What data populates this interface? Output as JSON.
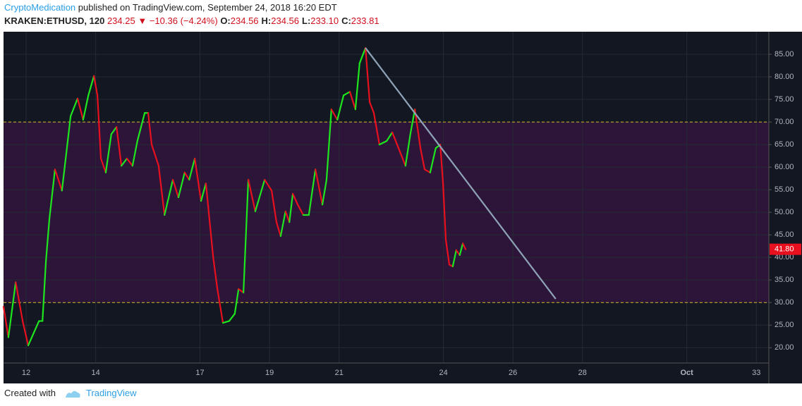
{
  "header": {
    "author": "CryptoMedication",
    "published": "published on TradingView.com, September 24, 2018 16:20 EDT",
    "symbol": "KRAKEN:ETHUSD, 120",
    "last": "234.25",
    "arrow": "▼",
    "change": "−10.36 (−4.24%)",
    "ohlc": [
      {
        "label": "O:",
        "value": "234.56"
      },
      {
        "label": "H:",
        "value": "234.56"
      },
      {
        "label": "L:",
        "value": "233.10"
      },
      {
        "label": "C:",
        "value": "233.81"
      }
    ]
  },
  "footer": {
    "text": "Created with",
    "brand": "TradingView"
  },
  "chart_data": {
    "type": "line",
    "up_color": "#1ee61e",
    "down_color": "#e8101e",
    "x": [
      11.35,
      11.49,
      11.7,
      11.9,
      12.06,
      12.37,
      12.47,
      12.57,
      12.67,
      12.83,
      13.03,
      13.28,
      13.48,
      13.64,
      13.79,
      13.95,
      14.05,
      14.15,
      14.29,
      14.45,
      14.6,
      14.74,
      14.9,
      15.06,
      15.2,
      15.41,
      15.51,
      15.61,
      15.81,
      15.98,
      16.22,
      16.38,
      16.56,
      16.69,
      16.85,
      17.03,
      17.17,
      17.38,
      17.5,
      17.66,
      17.84,
      18.0,
      18.11,
      18.25,
      18.39,
      18.59,
      18.86,
      19.06,
      19.2,
      19.32,
      19.46,
      19.57,
      19.67,
      19.81,
      19.97,
      20.13,
      20.32,
      20.52,
      20.64,
      20.78,
      20.95,
      21.13,
      21.31,
      21.47,
      21.59,
      21.76,
      21.88,
      22.0,
      22.16,
      22.37,
      22.53,
      22.71,
      22.91,
      23.05,
      23.18,
      23.34,
      23.46,
      23.62,
      23.78,
      23.91,
      23.99,
      24.07,
      24.17,
      24.27,
      24.37,
      24.47,
      24.56,
      24.64
    ],
    "values": [
      29.1,
      22.3,
      34.5,
      25.9,
      20.5,
      25.9,
      25.9,
      39.2,
      48.6,
      59.5,
      54.8,
      71.3,
      75.2,
      70.5,
      75.9,
      80.2,
      75.9,
      61.9,
      58.8,
      67.3,
      68.9,
      60.3,
      61.9,
      60.3,
      65.8,
      72.0,
      72.0,
      65.0,
      60.3,
      49.4,
      57.2,
      53.3,
      58.8,
      57.2,
      61.9,
      52.5,
      56.4,
      40.0,
      33.0,
      25.5,
      25.9,
      27.5,
      33.0,
      32.2,
      57.2,
      50.2,
      57.2,
      54.8,
      47.8,
      44.7,
      50.2,
      47.8,
      54.1,
      51.7,
      49.4,
      49.4,
      59.5,
      51.7,
      57.2,
      72.8,
      70.5,
      75.9,
      76.7,
      72.8,
      83.0,
      86.4,
      74.4,
      72.0,
      65.0,
      65.8,
      67.7,
      64.2,
      60.3,
      67.3,
      72.8,
      64.2,
      59.5,
      58.8,
      64.2,
      65.0,
      56.4,
      43.9,
      38.4,
      38.0,
      41.6,
      40.5,
      43.1,
      41.8
    ],
    "last_label": "41.80",
    "bands": [
      30,
      70
    ],
    "band_color": "#2c1538",
    "band_line_color": "#d8b82a",
    "trendline": {
      "x": [
        21.76,
        27.23
      ],
      "values": [
        86.4,
        30.8
      ],
      "color": "#8fa3b8"
    },
    "xlim": [
      11.35,
      33.36
    ],
    "ylim": [
      16.6,
      90
    ],
    "xticks": [
      12,
      14,
      17,
      19,
      21,
      24,
      26,
      28,
      {
        "value": 31,
        "label": "Oct"
      },
      33
    ],
    "yticks": [
      {
        "value": 20,
        "label": "20.00"
      },
      {
        "value": 25,
        "label": "25.00"
      },
      {
        "value": 30,
        "label": "30.00"
      },
      {
        "value": 35,
        "label": "35.00"
      },
      {
        "value": 40,
        "label": "40.00"
      },
      {
        "value": 45,
        "label": "45.00"
      },
      {
        "value": 50,
        "label": "50.00"
      },
      {
        "value": 55,
        "label": "55.00"
      },
      {
        "value": 60,
        "label": "60.00"
      },
      {
        "value": 65,
        "label": "65.00"
      },
      {
        "value": 70,
        "label": "70.00"
      },
      {
        "value": 75,
        "label": "75.00"
      },
      {
        "value": 80,
        "label": "80.00"
      },
      {
        "value": 85,
        "label": "85.00"
      }
    ],
    "grid": true
  }
}
